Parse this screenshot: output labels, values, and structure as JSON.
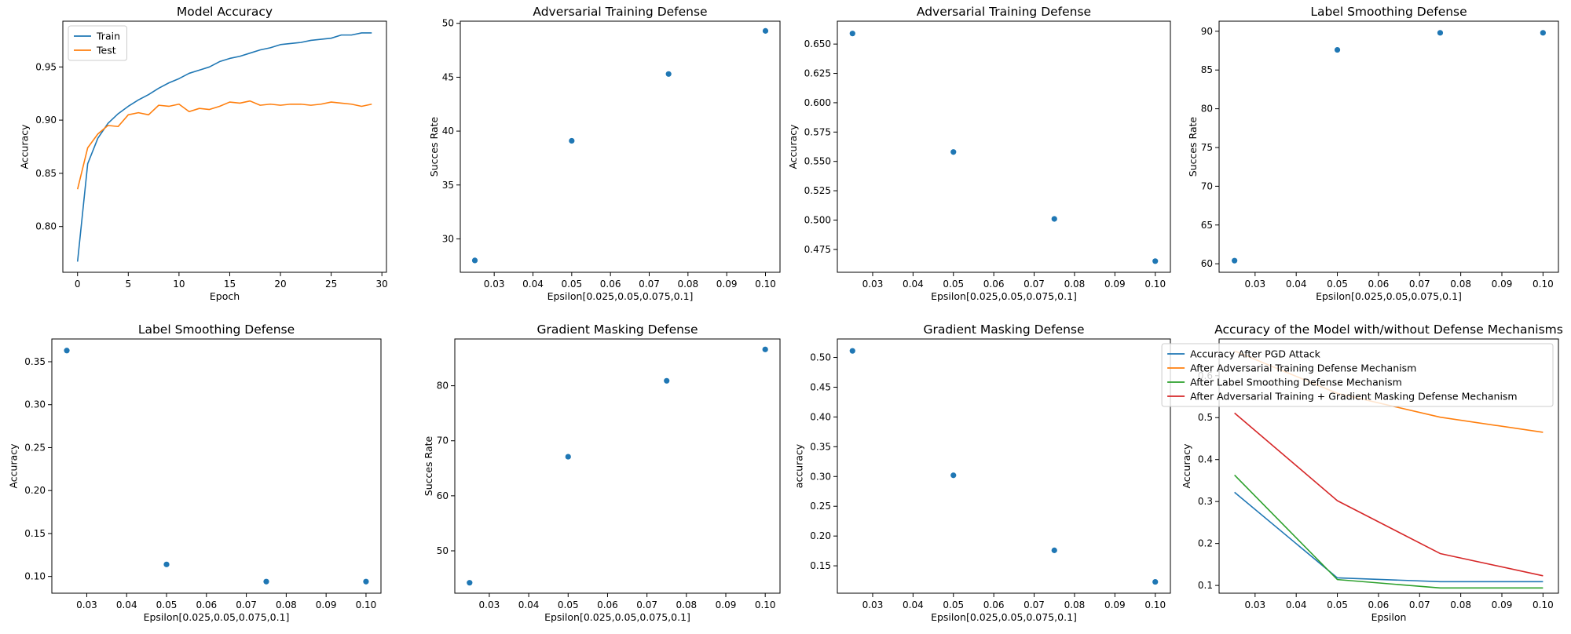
{
  "colors": {
    "blue": "#1f77b4",
    "orange": "#ff7f0e",
    "green": "#2ca02c",
    "red": "#d62728"
  },
  "chart_data": [
    {
      "type": "line",
      "title": "Model Accuracy",
      "xlabel": "Epoch",
      "ylabel": "Accuracy",
      "xlim": [
        -1.45,
        30.45
      ],
      "ylim": [
        0.757,
        0.993
      ],
      "xticks": [
        0,
        5,
        10,
        15,
        20,
        25,
        30
      ],
      "yticks": [
        0.8,
        0.85,
        0.9,
        0.95
      ],
      "ytick_labels": [
        "0.80",
        "0.85",
        "0.90",
        "0.95"
      ],
      "legend": "top-left",
      "x": [
        0,
        1,
        2,
        3,
        4,
        5,
        6,
        7,
        8,
        9,
        10,
        11,
        12,
        13,
        14,
        15,
        16,
        17,
        18,
        19,
        20,
        21,
        22,
        23,
        24,
        25,
        26,
        27,
        28,
        29
      ],
      "series": [
        {
          "name": "Train",
          "color": "blue",
          "values": [
            0.767,
            0.859,
            0.883,
            0.897,
            0.906,
            0.913,
            0.919,
            0.924,
            0.93,
            0.935,
            0.939,
            0.944,
            0.947,
            0.95,
            0.955,
            0.958,
            0.96,
            0.963,
            0.966,
            0.968,
            0.971,
            0.972,
            0.973,
            0.975,
            0.976,
            0.977,
            0.98,
            0.98,
            0.982,
            0.982
          ]
        },
        {
          "name": "Test",
          "color": "orange",
          "values": [
            0.835,
            0.874,
            0.887,
            0.895,
            0.894,
            0.905,
            0.907,
            0.905,
            0.914,
            0.913,
            0.915,
            0.908,
            0.911,
            0.91,
            0.913,
            0.917,
            0.916,
            0.918,
            0.914,
            0.915,
            0.914,
            0.915,
            0.915,
            0.914,
            0.915,
            0.917,
            0.916,
            0.915,
            0.913,
            0.915
          ]
        }
      ]
    },
    {
      "type": "scatter",
      "title": "Adversarial Training Defense",
      "xlabel": "Epsilon[0.025,0.05,0.075,0.1]",
      "ylabel": "Succes Rate",
      "xlim": [
        0.02125,
        0.10375
      ],
      "ylim": [
        26.9,
        50.2
      ],
      "xticks": [
        0.03,
        0.04,
        0.05,
        0.06,
        0.07,
        0.08,
        0.09,
        0.1
      ],
      "xtick_labels": [
        "0.03",
        "0.04",
        "0.05",
        "0.06",
        "0.07",
        "0.08",
        "0.09",
        "0.10"
      ],
      "yticks": [
        30,
        35,
        40,
        45,
        50
      ],
      "ytick_labels": [
        "30",
        "35",
        "40",
        "45",
        "50"
      ],
      "x": [
        0.025,
        0.05,
        0.075,
        0.1
      ],
      "series": [
        {
          "color": "blue",
          "values": [
            28.0,
            39.1,
            45.3,
            49.3
          ]
        }
      ]
    },
    {
      "type": "scatter",
      "title": "Adversarial Training Defense",
      "xlabel": "Epsilon[0.025,0.05,0.075,0.1]",
      "ylabel": "Accuracy",
      "xlim": [
        0.02125,
        0.10375
      ],
      "ylim": [
        0.4555,
        0.6695
      ],
      "xticks": [
        0.03,
        0.04,
        0.05,
        0.06,
        0.07,
        0.08,
        0.09,
        0.1
      ],
      "xtick_labels": [
        "0.03",
        "0.04",
        "0.05",
        "0.06",
        "0.07",
        "0.08",
        "0.09",
        "0.10"
      ],
      "yticks": [
        0.475,
        0.5,
        0.525,
        0.55,
        0.575,
        0.6,
        0.625,
        0.65
      ],
      "ytick_labels": [
        "0.475",
        "0.500",
        "0.525",
        "0.550",
        "0.575",
        "0.600",
        "0.625",
        "0.650"
      ],
      "x": [
        0.025,
        0.05,
        0.075,
        0.1
      ],
      "series": [
        {
          "color": "blue",
          "values": [
            0.659,
            0.558,
            0.501,
            0.465
          ]
        }
      ]
    },
    {
      "type": "scatter",
      "title": "Label Smoothing Defense",
      "xlabel": "Epsilon[0.025,0.05,0.075,0.1]",
      "ylabel": "Succes Rate",
      "xlim": [
        0.02125,
        0.10375
      ],
      "ylim": [
        58.9,
        91.3
      ],
      "xticks": [
        0.03,
        0.04,
        0.05,
        0.06,
        0.07,
        0.08,
        0.09,
        0.1
      ],
      "xtick_labels": [
        "0.03",
        "0.04",
        "0.05",
        "0.06",
        "0.07",
        "0.08",
        "0.09",
        "0.10"
      ],
      "yticks": [
        60,
        65,
        70,
        75,
        80,
        85,
        90
      ],
      "ytick_labels": [
        "60",
        "65",
        "70",
        "75",
        "80",
        "85",
        "90"
      ],
      "x": [
        0.025,
        0.05,
        0.075,
        0.1
      ],
      "series": [
        {
          "color": "blue",
          "values": [
            60.4,
            87.6,
            89.8,
            89.8
          ]
        }
      ]
    },
    {
      "type": "scatter",
      "title": "Label Smoothing Defense",
      "xlabel": "Epsilon[0.025,0.05,0.075,0.1]",
      "ylabel": "Accuracy",
      "xlim": [
        0.02125,
        0.10375
      ],
      "ylim": [
        0.0805,
        0.3765
      ],
      "xticks": [
        0.03,
        0.04,
        0.05,
        0.06,
        0.07,
        0.08,
        0.09,
        0.1
      ],
      "xtick_labels": [
        "0.03",
        "0.04",
        "0.05",
        "0.06",
        "0.07",
        "0.08",
        "0.09",
        "0.10"
      ],
      "yticks": [
        0.1,
        0.15,
        0.2,
        0.25,
        0.3,
        0.35
      ],
      "ytick_labels": [
        "0.10",
        "0.15",
        "0.20",
        "0.25",
        "0.30",
        "0.35"
      ],
      "x": [
        0.025,
        0.05,
        0.075,
        0.1
      ],
      "series": [
        {
          "color": "blue",
          "values": [
            0.363,
            0.114,
            0.094,
            0.094
          ]
        }
      ]
    },
    {
      "type": "scatter",
      "title": "Gradient Masking Defense",
      "xlabel": "Epsilon[0.025,0.05,0.075,0.1]",
      "ylabel": "Succes Rate",
      "xlim": [
        0.02125,
        0.10375
      ],
      "ylim": [
        42.3,
        88.5
      ],
      "xticks": [
        0.03,
        0.04,
        0.05,
        0.06,
        0.07,
        0.08,
        0.09,
        0.1
      ],
      "xtick_labels": [
        "0.03",
        "0.04",
        "0.05",
        "0.06",
        "0.07",
        "0.08",
        "0.09",
        "0.10"
      ],
      "yticks": [
        50,
        60,
        70,
        80
      ],
      "ytick_labels": [
        "50",
        "60",
        "70",
        "80"
      ],
      "x": [
        0.025,
        0.05,
        0.075,
        0.1
      ],
      "series": [
        {
          "color": "blue",
          "values": [
            44.2,
            67.1,
            80.9,
            86.6
          ]
        }
      ]
    },
    {
      "type": "scatter",
      "title": "Gradient Masking Defense",
      "xlabel": "Epsilon[0.025,0.05,0.075,0.1]",
      "ylabel": "accuracy",
      "xlim": [
        0.02125,
        0.10375
      ],
      "ylim": [
        0.104,
        0.531
      ],
      "xticks": [
        0.03,
        0.04,
        0.05,
        0.06,
        0.07,
        0.08,
        0.09,
        0.1
      ],
      "xtick_labels": [
        "0.03",
        "0.04",
        "0.05",
        "0.06",
        "0.07",
        "0.08",
        "0.09",
        "0.10"
      ],
      "yticks": [
        0.15,
        0.2,
        0.25,
        0.3,
        0.35,
        0.4,
        0.45,
        0.5
      ],
      "ytick_labels": [
        "0.15",
        "0.20",
        "0.25",
        "0.30",
        "0.35",
        "0.40",
        "0.45",
        "0.50"
      ],
      "x": [
        0.025,
        0.05,
        0.075,
        0.1
      ],
      "series": [
        {
          "color": "blue",
          "values": [
            0.511,
            0.302,
            0.176,
            0.123
          ]
        }
      ]
    },
    {
      "type": "line",
      "title": "Accuracy of the Model with/without Defense Mechanisms",
      "xlabel": "Epsilon",
      "ylabel": "Accuracy",
      "xlim": [
        0.02125,
        0.10375
      ],
      "ylim": [
        0.0815,
        0.6875
      ],
      "xticks": [
        0.03,
        0.04,
        0.05,
        0.06,
        0.07,
        0.08,
        0.09,
        0.1
      ],
      "xtick_labels": [
        "0.03",
        "0.04",
        "0.05",
        "0.06",
        "0.07",
        "0.08",
        "0.09",
        "0.10"
      ],
      "yticks": [
        0.1,
        0.2,
        0.3,
        0.4,
        0.5,
        0.6
      ],
      "ytick_labels": [
        "0.1",
        "0.2",
        "0.3",
        "0.4",
        "0.5",
        "0.6"
      ],
      "legend": "top-right",
      "x": [
        0.025,
        0.05,
        0.075,
        0.1
      ],
      "series": [
        {
          "name": "Accuracy After PGD Attack",
          "color": "blue",
          "values": [
            0.322,
            0.118,
            0.109,
            0.109
          ]
        },
        {
          "name": "After Adversarial Training Defense Mechanism",
          "color": "orange",
          "values": [
            0.659,
            0.558,
            0.501,
            0.465
          ]
        },
        {
          "name": "After Label Smoothing Defense Mechanism",
          "color": "green",
          "values": [
            0.363,
            0.114,
            0.094,
            0.094
          ]
        },
        {
          "name": "After Adversarial Training + Gradient Masking Defense Mechanism",
          "color": "red",
          "values": [
            0.511,
            0.302,
            0.176,
            0.123
          ]
        }
      ]
    }
  ]
}
